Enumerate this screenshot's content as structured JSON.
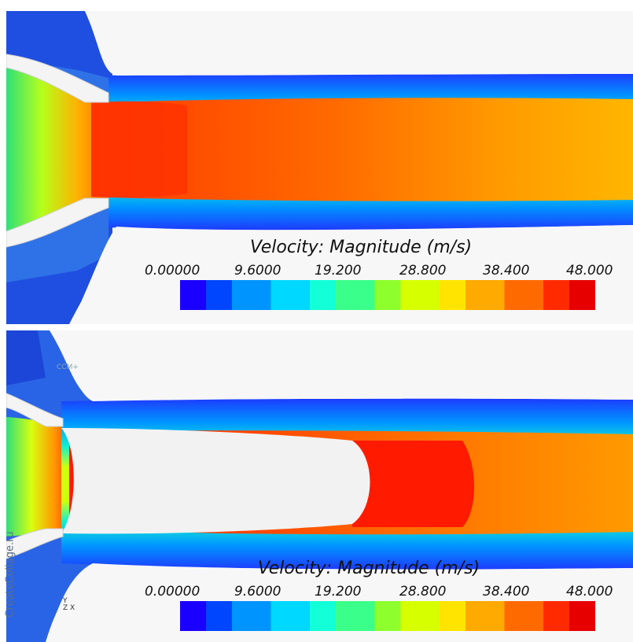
{
  "watermark": "CreateCollage.ru",
  "panels": [
    {
      "id": "top",
      "legend": {
        "title": "Velocity: Magnitude (m/s)",
        "ticks": [
          "0.00000",
          "9.6000",
          "19.200",
          "28.800",
          "38.400",
          "48.000"
        ]
      }
    },
    {
      "id": "bottom",
      "legend": {
        "title": "Velocity: Magnitude (m/s)",
        "ticks": [
          "0.00000",
          "9.6000",
          "19.200",
          "28.800",
          "38.400",
          "48.000"
        ]
      },
      "logo_text": "CCM+",
      "axes_labels": {
        "y": "Y",
        "z": "Z",
        "x": "X"
      }
    }
  ],
  "colormap": [
    "#1a00ff",
    "#0046ff",
    "#0094ff",
    "#00d8ff",
    "#12ffd8",
    "#3aff8a",
    "#8eff2c",
    "#d6ff00",
    "#ffe400",
    "#ffaa00",
    "#ff6a00",
    "#ff2a00",
    "#e60000"
  ]
}
